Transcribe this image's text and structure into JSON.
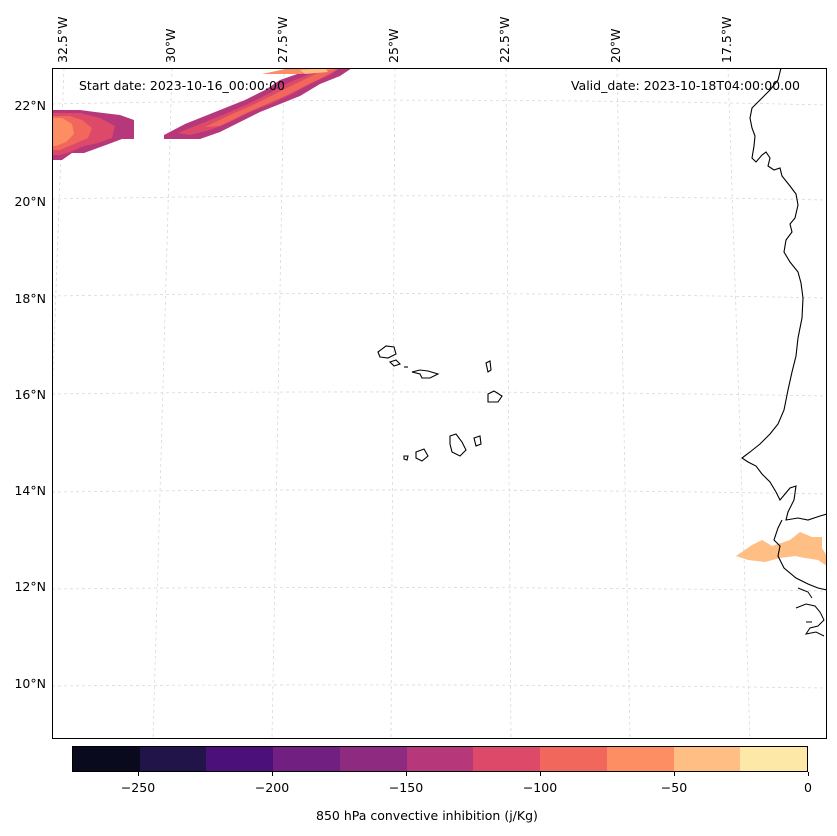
{
  "map": {
    "start_date": "Start date: 2023-10-16_00:00:00",
    "valid_date": "Valid_date: 2023-10-18T04:00:00.00",
    "lat_labels": [
      "22°N",
      "20°N",
      "18°N",
      "16°N",
      "14°N",
      "12°N",
      "10°N"
    ],
    "lon_labels": [
      "32.5°W",
      "30°W",
      "27.5°W",
      "25°W",
      "22.5°W",
      "20°W",
      "17.5°W"
    ]
  },
  "colorbar": {
    "label": "850 hPa convective inhibition (j/Kg)",
    "ticks": [
      "−250",
      "−200",
      "−150",
      "−100",
      "−50",
      "0"
    ],
    "colors": [
      "#0a0a1e",
      "#201448",
      "#4b1079",
      "#711f81",
      "#8e2a7f",
      "#b7387a",
      "#dd4a69",
      "#f2675c",
      "#fd8e63",
      "#febe84",
      "#fde8a7"
    ]
  },
  "chart_data": {
    "type": "heatmap",
    "title": "",
    "variable": "850 hPa convective inhibition",
    "units": "j/Kg",
    "levels": [
      -275,
      -250,
      -225,
      -200,
      -175,
      -150,
      -125,
      -100,
      -75,
      -50,
      -25,
      0
    ],
    "range": [
      -275,
      0
    ],
    "lat_range": [
      9,
      22.8
    ],
    "lon_range": [
      -32.7,
      -16.6
    ]
  }
}
